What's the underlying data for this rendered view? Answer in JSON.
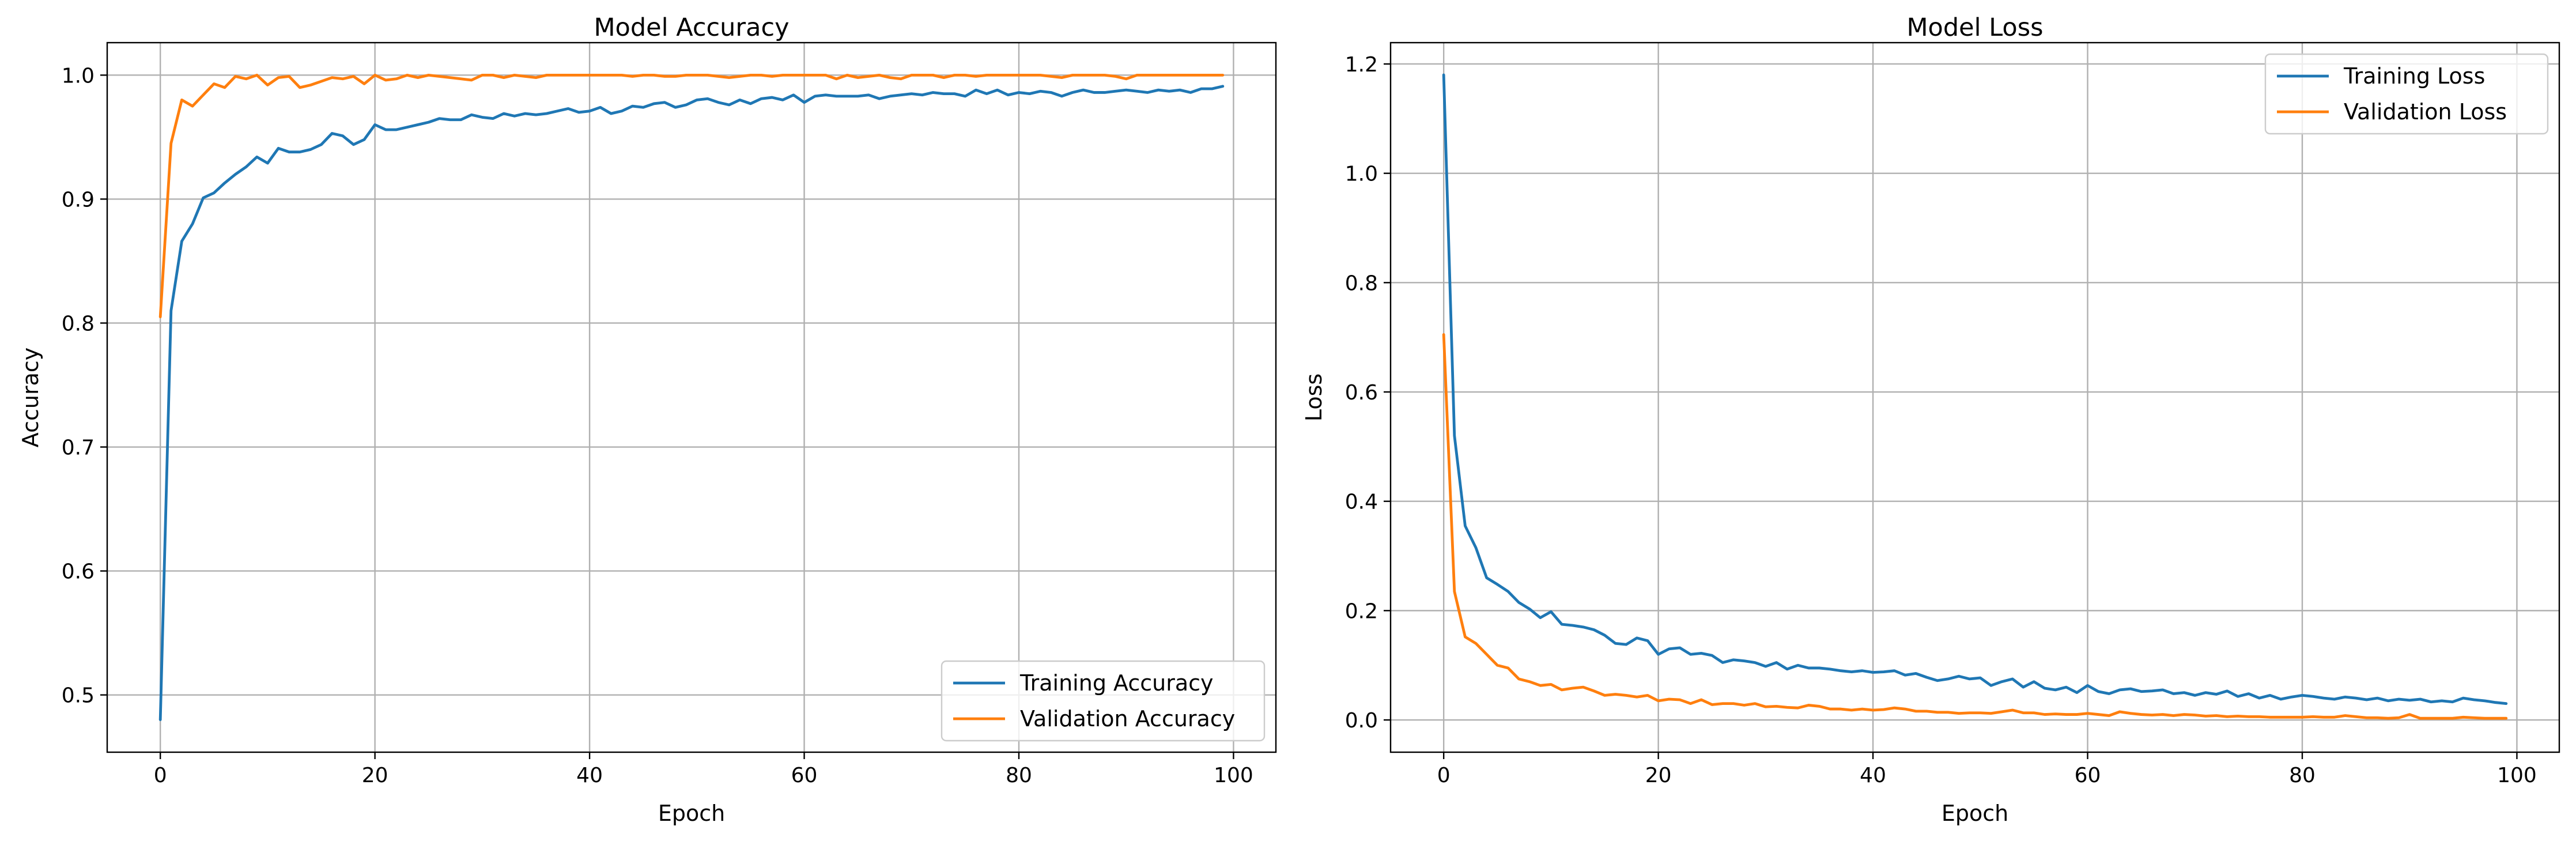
{
  "chart_data": [
    {
      "type": "line",
      "title": "Model Accuracy",
      "xlabel": "Epoch",
      "ylabel": "Accuracy",
      "xlim": [
        -4.95,
        103.95
      ],
      "ylim": [
        0.4538,
        1.0262
      ],
      "xticks": [
        0,
        20,
        40,
        60,
        80,
        100
      ],
      "yticks": [
        0.5,
        0.6,
        0.7,
        0.8,
        0.9,
        1.0
      ],
      "xtick_labels": [
        "0",
        "20",
        "40",
        "60",
        "80",
        "100"
      ],
      "ytick_labels": [
        "0.5",
        "0.6",
        "0.7",
        "0.8",
        "0.9",
        "1.0"
      ],
      "grid": true,
      "legend_position": "lower-right",
      "series": [
        {
          "name": "Training Accuracy",
          "color": "#1f77b4",
          "values": [
            0.48,
            0.81,
            0.866,
            0.88,
            0.901,
            0.905,
            0.913,
            0.92,
            0.926,
            0.934,
            0.929,
            0.941,
            0.938,
            0.938,
            0.94,
            0.944,
            0.953,
            0.951,
            0.944,
            0.948,
            0.96,
            0.956,
            0.956,
            0.958,
            0.96,
            0.962,
            0.965,
            0.964,
            0.964,
            0.968,
            0.966,
            0.965,
            0.969,
            0.967,
            0.969,
            0.968,
            0.969,
            0.971,
            0.973,
            0.97,
            0.971,
            0.974,
            0.969,
            0.971,
            0.975,
            0.974,
            0.977,
            0.978,
            0.974,
            0.976,
            0.98,
            0.981,
            0.978,
            0.976,
            0.98,
            0.977,
            0.981,
            0.982,
            0.98,
            0.984,
            0.978,
            0.983,
            0.984,
            0.983,
            0.983,
            0.983,
            0.984,
            0.981,
            0.983,
            0.984,
            0.985,
            0.984,
            0.986,
            0.985,
            0.985,
            0.983,
            0.988,
            0.985,
            0.988,
            0.984,
            0.986,
            0.985,
            0.987,
            0.986,
            0.983,
            0.986,
            0.988,
            0.986,
            0.986,
            0.987,
            0.988,
            0.987,
            0.986,
            0.988,
            0.987,
            0.988,
            0.986,
            0.989,
            0.989,
            0.991
          ]
        },
        {
          "name": "Validation Accuracy",
          "color": "#ff7f0e",
          "values": [
            0.805,
            0.945,
            0.98,
            0.975,
            0.984,
            0.993,
            0.99,
            0.999,
            0.997,
            1.0,
            0.992,
            0.998,
            0.999,
            0.99,
            0.992,
            0.995,
            0.998,
            0.997,
            0.999,
            0.993,
            1.0,
            0.996,
            0.997,
            1.0,
            0.998,
            1.0,
            0.999,
            0.998,
            0.997,
            0.996,
            1.0,
            1.0,
            0.998,
            1.0,
            0.999,
            0.998,
            1.0,
            1.0,
            1.0,
            1.0,
            1.0,
            1.0,
            1.0,
            1.0,
            0.999,
            1.0,
            1.0,
            0.999,
            0.999,
            1.0,
            1.0,
            1.0,
            0.999,
            0.998,
            0.999,
            1.0,
            1.0,
            0.999,
            1.0,
            1.0,
            1.0,
            1.0,
            1.0,
            0.997,
            1.0,
            0.998,
            0.999,
            1.0,
            0.998,
            0.997,
            1.0,
            1.0,
            1.0,
            0.998,
            1.0,
            1.0,
            0.999,
            1.0,
            1.0,
            1.0,
            1.0,
            1.0,
            1.0,
            0.999,
            0.998,
            1.0,
            1.0,
            1.0,
            1.0,
            0.999,
            0.997,
            1.0,
            1.0,
            1.0,
            1.0,
            1.0,
            1.0,
            1.0,
            1.0,
            1.0
          ]
        }
      ]
    },
    {
      "type": "line",
      "title": "Model Loss",
      "xlabel": "Epoch",
      "ylabel": "Loss",
      "xlim": [
        -4.95,
        103.95
      ],
      "ylim": [
        -0.059,
        1.239
      ],
      "xticks": [
        0,
        20,
        40,
        60,
        80,
        100
      ],
      "yticks": [
        0.0,
        0.2,
        0.4,
        0.6,
        0.8,
        1.0,
        1.2
      ],
      "xtick_labels": [
        "0",
        "20",
        "40",
        "60",
        "80",
        "100"
      ],
      "ytick_labels": [
        "0.0",
        "0.2",
        "0.4",
        "0.6",
        "0.8",
        "1.0",
        "1.2"
      ],
      "grid": true,
      "legend_position": "upper-right",
      "series": [
        {
          "name": "Training Loss",
          "color": "#1f77b4",
          "values": [
            1.18,
            0.52,
            0.355,
            0.315,
            0.26,
            0.248,
            0.235,
            0.215,
            0.203,
            0.187,
            0.198,
            0.175,
            0.173,
            0.17,
            0.165,
            0.155,
            0.14,
            0.138,
            0.15,
            0.145,
            0.12,
            0.13,
            0.132,
            0.12,
            0.122,
            0.118,
            0.105,
            0.11,
            0.108,
            0.105,
            0.098,
            0.105,
            0.093,
            0.1,
            0.095,
            0.095,
            0.093,
            0.09,
            0.088,
            0.09,
            0.087,
            0.088,
            0.09,
            0.082,
            0.085,
            0.078,
            0.072,
            0.075,
            0.08,
            0.075,
            0.077,
            0.063,
            0.07,
            0.075,
            0.06,
            0.07,
            0.058,
            0.055,
            0.06,
            0.05,
            0.063,
            0.052,
            0.048,
            0.055,
            0.057,
            0.052,
            0.053,
            0.055,
            0.048,
            0.05,
            0.045,
            0.05,
            0.047,
            0.053,
            0.043,
            0.048,
            0.04,
            0.045,
            0.038,
            0.042,
            0.045,
            0.043,
            0.04,
            0.038,
            0.042,
            0.04,
            0.037,
            0.04,
            0.035,
            0.038,
            0.036,
            0.038,
            0.033,
            0.035,
            0.033,
            0.04,
            0.037,
            0.035,
            0.032,
            0.03
          ]
        },
        {
          "name": "Validation Loss",
          "color": "#ff7f0e",
          "values": [
            0.705,
            0.235,
            0.152,
            0.14,
            0.12,
            0.1,
            0.095,
            0.075,
            0.07,
            0.063,
            0.065,
            0.055,
            0.058,
            0.06,
            0.053,
            0.045,
            0.047,
            0.045,
            0.042,
            0.045,
            0.035,
            0.038,
            0.037,
            0.03,
            0.037,
            0.028,
            0.03,
            0.03,
            0.027,
            0.03,
            0.024,
            0.025,
            0.023,
            0.022,
            0.027,
            0.025,
            0.02,
            0.02,
            0.018,
            0.02,
            0.018,
            0.019,
            0.022,
            0.02,
            0.016,
            0.016,
            0.014,
            0.014,
            0.012,
            0.013,
            0.013,
            0.012,
            0.015,
            0.018,
            0.013,
            0.013,
            0.01,
            0.011,
            0.01,
            0.01,
            0.012,
            0.01,
            0.008,
            0.015,
            0.012,
            0.01,
            0.009,
            0.01,
            0.008,
            0.01,
            0.009,
            0.007,
            0.008,
            0.006,
            0.007,
            0.006,
            0.006,
            0.005,
            0.005,
            0.005,
            0.005,
            0.006,
            0.005,
            0.005,
            0.008,
            0.006,
            0.004,
            0.004,
            0.003,
            0.004,
            0.01,
            0.003,
            0.003,
            0.003,
            0.003,
            0.005,
            0.004,
            0.003,
            0.003,
            0.003
          ]
        }
      ]
    }
  ]
}
